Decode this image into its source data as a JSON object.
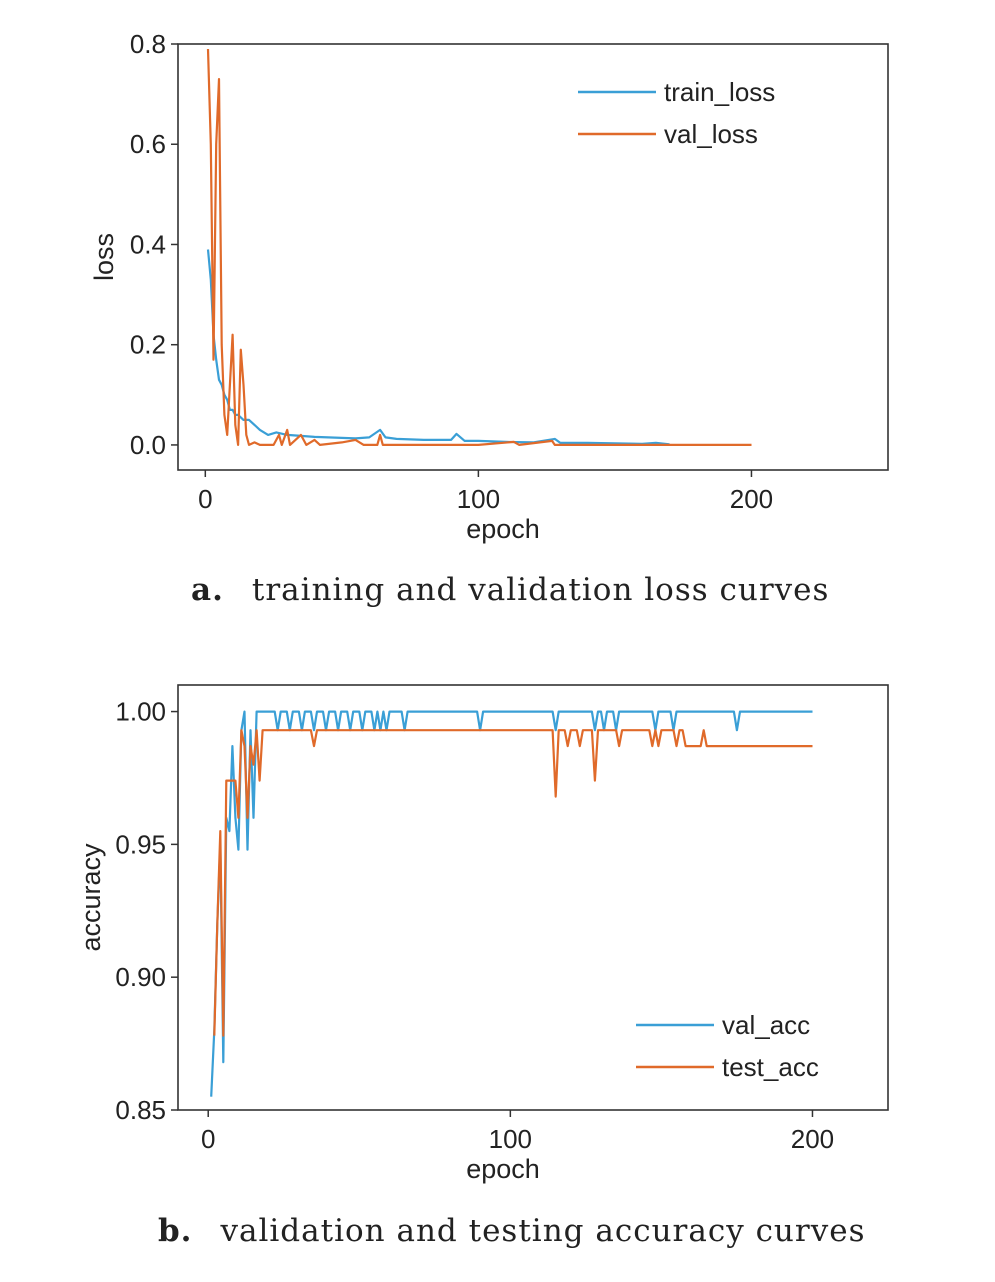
{
  "chart_data": [
    {
      "type": "line",
      "xlabel": "epoch",
      "ylabel": "loss",
      "xticks": [
        0,
        100,
        200
      ],
      "yticks": [
        "0.0",
        "0.2",
        "0.4",
        "0.6",
        "0.8"
      ],
      "xlim": [
        -10,
        250
      ],
      "ylim": [
        -0.05,
        0.8
      ],
      "legend_position": "top-right",
      "series": [
        {
          "name": "train_loss",
          "color": "#3a9fd6",
          "points": [
            [
              1,
              0.39
            ],
            [
              2,
              0.33
            ],
            [
              3,
              0.22
            ],
            [
              4,
              0.17
            ],
            [
              5,
              0.13
            ],
            [
              6,
              0.12
            ],
            [
              7,
              0.1
            ],
            [
              8,
              0.09
            ],
            [
              9,
              0.07
            ],
            [
              10,
              0.07
            ],
            [
              11,
              0.06
            ],
            [
              12,
              0.06
            ],
            [
              14,
              0.05
            ],
            [
              16,
              0.05
            ],
            [
              18,
              0.04
            ],
            [
              20,
              0.03
            ],
            [
              23,
              0.02
            ],
            [
              26,
              0.025
            ],
            [
              30,
              0.02
            ],
            [
              35,
              0.018
            ],
            [
              40,
              0.016
            ],
            [
              45,
              0.015
            ],
            [
              50,
              0.014
            ],
            [
              55,
              0.013
            ],
            [
              60,
              0.015
            ],
            [
              64,
              0.03
            ],
            [
              66,
              0.015
            ],
            [
              70,
              0.012
            ],
            [
              80,
              0.01
            ],
            [
              90,
              0.01
            ],
            [
              92,
              0.022
            ],
            [
              95,
              0.008
            ],
            [
              100,
              0.008
            ],
            [
              110,
              0.006
            ],
            [
              120,
              0.005
            ],
            [
              128,
              0.012
            ],
            [
              130,
              0.004
            ],
            [
              140,
              0.004
            ],
            [
              150,
              0.003
            ],
            [
              160,
              0.002
            ],
            [
              165,
              0.004
            ],
            [
              170,
              0.001
            ]
          ]
        },
        {
          "name": "val_loss",
          "color": "#e06a2a",
          "points": [
            [
              1,
              0.79
            ],
            [
              2,
              0.6
            ],
            [
              3,
              0.17
            ],
            [
              4,
              0.6
            ],
            [
              5,
              0.73
            ],
            [
              6,
              0.2
            ],
            [
              7,
              0.06
            ],
            [
              8,
              0.02
            ],
            [
              9,
              0.12
            ],
            [
              10,
              0.22
            ],
            [
              11,
              0.04
            ],
            [
              12,
              0.0
            ],
            [
              13,
              0.19
            ],
            [
              14,
              0.12
            ],
            [
              15,
              0.02
            ],
            [
              16,
              0.0
            ],
            [
              18,
              0.005
            ],
            [
              20,
              0.0
            ],
            [
              25,
              0.0
            ],
            [
              27,
              0.02
            ],
            [
              28,
              0.0
            ],
            [
              30,
              0.03
            ],
            [
              31,
              0.0
            ],
            [
              35,
              0.02
            ],
            [
              37,
              0.0
            ],
            [
              40,
              0.01
            ],
            [
              42,
              0.0
            ],
            [
              50,
              0.005
            ],
            [
              55,
              0.01
            ],
            [
              58,
              0.0
            ],
            [
              63,
              0.0
            ],
            [
              64,
              0.02
            ],
            [
              65,
              0.0
            ],
            [
              80,
              0.0
            ],
            [
              100,
              0.0
            ],
            [
              113,
              0.006
            ],
            [
              115,
              0.0
            ],
            [
              127,
              0.008
            ],
            [
              128,
              0.0
            ],
            [
              140,
              0.0
            ],
            [
              150,
              0.0
            ],
            [
              175,
              0.0
            ],
            [
              200,
              0.0
            ]
          ]
        }
      ]
    },
    {
      "type": "line",
      "xlabel": "epoch",
      "ylabel": "accuracy",
      "xticks": [
        0,
        100,
        200
      ],
      "yticks": [
        "0.85",
        "0.90",
        "0.95",
        "1.00"
      ],
      "xlim": [
        -10,
        225
      ],
      "ylim": [
        0.85,
        1.01
      ],
      "legend_position": "bottom-right",
      "series": [
        {
          "name": "val_acc",
          "color": "#3a9fd6",
          "points": [
            [
              1,
              0.855
            ],
            [
              2,
              0.88
            ],
            [
              3,
              0.92
            ],
            [
              4,
              0.95
            ],
            [
              5,
              0.868
            ],
            [
              6,
              0.96
            ],
            [
              7,
              0.955
            ],
            [
              8,
              0.987
            ],
            [
              9,
              0.96
            ],
            [
              10,
              0.948
            ],
            [
              11,
              0.993
            ],
            [
              12,
              1.0
            ],
            [
              13,
              0.948
            ],
            [
              14,
              0.993
            ],
            [
              15,
              0.96
            ],
            [
              16,
              1.0
            ],
            [
              20,
              1.0
            ],
            [
              22,
              1.0
            ],
            [
              23,
              0.993
            ],
            [
              24,
              1.0
            ],
            [
              26,
              1.0
            ],
            [
              27,
              0.993
            ],
            [
              28,
              1.0
            ],
            [
              30,
              1.0
            ],
            [
              31,
              0.993
            ],
            [
              32,
              1.0
            ],
            [
              34,
              1.0
            ],
            [
              35,
              0.993
            ],
            [
              36,
              1.0
            ],
            [
              38,
              1.0
            ],
            [
              39,
              0.993
            ],
            [
              40,
              1.0
            ],
            [
              42,
              1.0
            ],
            [
              43,
              0.993
            ],
            [
              44,
              1.0
            ],
            [
              46,
              1.0
            ],
            [
              47,
              0.993
            ],
            [
              48,
              1.0
            ],
            [
              50,
              1.0
            ],
            [
              51,
              0.993
            ],
            [
              52,
              1.0
            ],
            [
              54,
              1.0
            ],
            [
              55,
              0.993
            ],
            [
              56,
              1.0
            ],
            [
              57,
              0.993
            ],
            [
              58,
              1.0
            ],
            [
              59,
              0.993
            ],
            [
              60,
              1.0
            ],
            [
              64,
              1.0
            ],
            [
              65,
              0.993
            ],
            [
              66,
              1.0
            ],
            [
              89,
              1.0
            ],
            [
              90,
              0.993
            ],
            [
              91,
              1.0
            ],
            [
              114,
              1.0
            ],
            [
              115,
              0.993
            ],
            [
              116,
              1.0
            ],
            [
              127,
              1.0
            ],
            [
              128,
              0.993
            ],
            [
              129,
              1.0
            ],
            [
              130,
              1.0
            ],
            [
              131,
              0.993
            ],
            [
              132,
              1.0
            ],
            [
              134,
              1.0
            ],
            [
              135,
              0.993
            ],
            [
              136,
              1.0
            ],
            [
              147,
              1.0
            ],
            [
              148,
              0.993
            ],
            [
              149,
              1.0
            ],
            [
              153,
              1.0
            ],
            [
              154,
              0.993
            ],
            [
              155,
              1.0
            ],
            [
              174,
              1.0
            ],
            [
              175,
              0.993
            ],
            [
              176,
              1.0
            ],
            [
              200,
              1.0
            ]
          ]
        },
        {
          "name": "test_acc",
          "color": "#e06a2a",
          "points": [
            [
              2,
              0.878
            ],
            [
              3,
              0.92
            ],
            [
              4,
              0.955
            ],
            [
              5,
              0.878
            ],
            [
              6,
              0.974
            ],
            [
              7,
              0.974
            ],
            [
              8,
              0.974
            ],
            [
              9,
              0.974
            ],
            [
              10,
              0.96
            ],
            [
              11,
              0.993
            ],
            [
              12,
              0.987
            ],
            [
              13,
              0.96
            ],
            [
              14,
              0.987
            ],
            [
              15,
              0.98
            ],
            [
              16,
              0.993
            ],
            [
              17,
              0.974
            ],
            [
              18,
              0.993
            ],
            [
              34,
              0.993
            ],
            [
              35,
              0.987
            ],
            [
              36,
              0.993
            ],
            [
              114,
              0.993
            ],
            [
              115,
              0.968
            ],
            [
              116,
              0.993
            ],
            [
              118,
              0.993
            ],
            [
              119,
              0.987
            ],
            [
              120,
              0.993
            ],
            [
              122,
              0.993
            ],
            [
              123,
              0.987
            ],
            [
              124,
              0.993
            ],
            [
              127,
              0.993
            ],
            [
              128,
              0.974
            ],
            [
              129,
              0.993
            ],
            [
              135,
              0.993
            ],
            [
              136,
              0.987
            ],
            [
              137,
              0.993
            ],
            [
              146,
              0.993
            ],
            [
              147,
              0.987
            ],
            [
              148,
              0.993
            ],
            [
              149,
              0.987
            ],
            [
              150,
              0.993
            ],
            [
              154,
              0.993
            ],
            [
              155,
              0.987
            ],
            [
              156,
              0.993
            ],
            [
              157,
              0.993
            ],
            [
              158,
              0.987
            ],
            [
              163,
              0.987
            ],
            [
              164,
              0.993
            ],
            [
              165,
              0.987
            ],
            [
              200,
              0.987
            ]
          ]
        }
      ]
    }
  ],
  "captions": {
    "a": {
      "label": "a.",
      "text": "training and validation loss curves"
    },
    "b": {
      "label": "b.",
      "text": "validation and testing accuracy curves"
    }
  }
}
